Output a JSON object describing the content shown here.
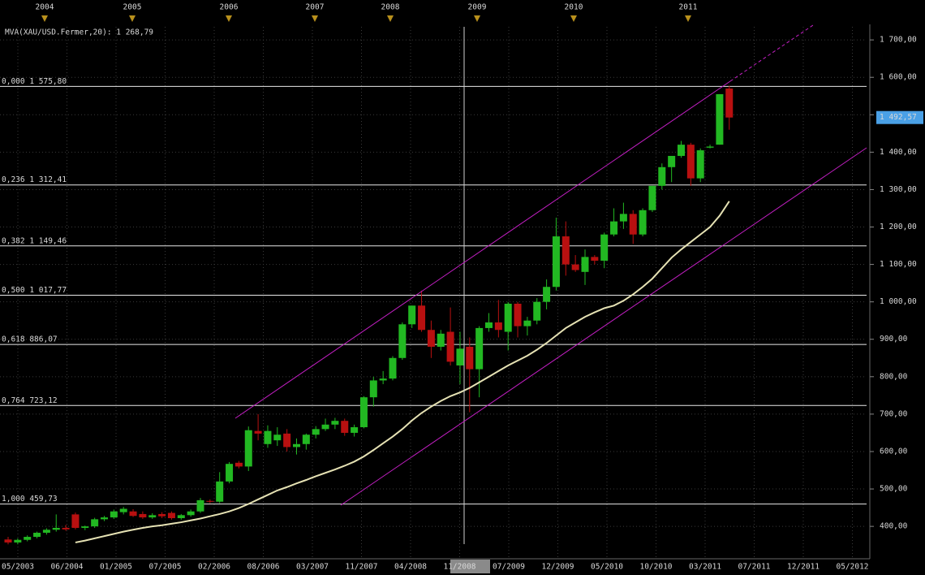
{
  "chart_data": {
    "type": "candlestick",
    "indicator_label": "MVA(XAU/USD.Fermer,20): 1 268,79",
    "top_labels": [
      "2004",
      "2005",
      "2006",
      "2007",
      "2008",
      "2009",
      "2010",
      "2011"
    ],
    "x_labels": [
      "05/2003",
      "06/2004",
      "01/2005",
      "07/2005",
      "02/2006",
      "08/2006",
      "03/2007",
      "11/2007",
      "04/2008",
      "11/2008",
      "07/2009",
      "12/2009",
      "05/2010",
      "10/2010",
      "03/2011",
      "07/2011",
      "12/2011",
      "05/2012"
    ],
    "ylim": [
      320,
      1735
    ],
    "yticks": [
      {
        "value": 400,
        "label": "400,00"
      },
      {
        "value": 500,
        "label": "500,00"
      },
      {
        "value": 600,
        "label": "600,00"
      },
      {
        "value": 700,
        "label": "700,00"
      },
      {
        "value": 800,
        "label": "800,00"
      },
      {
        "value": 900,
        "label": "900,00"
      },
      {
        "value": 1000,
        "label": "1 000,00"
      },
      {
        "value": 1100,
        "label": "1 100,00"
      },
      {
        "value": 1200,
        "label": "1 200,00"
      },
      {
        "value": 1300,
        "label": "1 300,00"
      },
      {
        "value": 1400,
        "label": "1 400,00"
      },
      {
        "value": 1500,
        "label": "1 500,00"
      },
      {
        "value": 1600,
        "label": "1 600,00"
      },
      {
        "value": 1700,
        "label": "1 700,00"
      }
    ],
    "fib_levels": [
      {
        "value": 1575.8,
        "label": "0,000 1 575,80"
      },
      {
        "value": 1312.41,
        "label": "0,236 1 312,41"
      },
      {
        "value": 1149.46,
        "label": "0,382 1 149,46"
      },
      {
        "value": 1017.77,
        "label": "0,500 1 017,77"
      },
      {
        "value": 886.07,
        "label": "0,618 886,07"
      },
      {
        "value": 723.12,
        "label": "0,764 723,12"
      },
      {
        "value": 459.73,
        "label": "1,000 459,73"
      }
    ],
    "last_price": {
      "value": 1492.57,
      "label": "1 492,57"
    },
    "up_color": "#22b822",
    "down_color": "#b81010",
    "ma_color": "#e6e2b4",
    "fib_color": "#e8e8e8",
    "grid": true,
    "open": [
      365,
      357,
      364,
      372,
      383,
      391,
      396,
      432,
      396,
      400,
      419,
      424,
      438,
      440,
      433,
      424,
      433,
      436,
      422,
      430,
      440,
      468,
      466,
      520,
      570,
      560,
      655,
      620,
      630,
      648,
      612,
      620,
      645,
      660,
      672,
      682,
      650,
      665,
      745,
      790,
      795,
      850,
      940,
      990,
      925,
      880,
      920,
      830,
      880,
      820,
      930,
      945,
      920,
      995,
      935,
      950,
      1000,
      1040,
      1175,
      1100,
      1080,
      1120,
      1110,
      1180,
      1215,
      1235,
      1180,
      1245,
      1310,
      1360,
      1390,
      1420,
      1330,
      1412,
      1420,
      1570
    ],
    "high": [
      372,
      368,
      376,
      386,
      395,
      432,
      404,
      437,
      402,
      423,
      428,
      445,
      452,
      446,
      440,
      435,
      438,
      440,
      433,
      445,
      476,
      472,
      545,
      572,
      575,
      667,
      700,
      670,
      665,
      660,
      635,
      648,
      668,
      688,
      690,
      688,
      672,
      748,
      800,
      815,
      855,
      945,
      990,
      1030,
      950,
      925,
      985,
      920,
      905,
      935,
      970,
      1005,
      1000,
      1000,
      960,
      1010,
      1060,
      1225,
      1215,
      1125,
      1140,
      1125,
      1185,
      1250,
      1265,
      1245,
      1250,
      1310,
      1370,
      1390,
      1430,
      1425,
      1410,
      1420,
      1555,
      1577
    ],
    "low": [
      352,
      352,
      360,
      368,
      378,
      386,
      388,
      392,
      390,
      396,
      414,
      420,
      432,
      425,
      420,
      420,
      422,
      418,
      418,
      426,
      436,
      462,
      462,
      515,
      555,
      548,
      630,
      610,
      615,
      600,
      592,
      605,
      635,
      655,
      660,
      642,
      640,
      662,
      720,
      780,
      790,
      845,
      930,
      920,
      850,
      870,
      830,
      780,
      705,
      745,
      920,
      905,
      870,
      905,
      910,
      940,
      980,
      1030,
      1070,
      1080,
      1045,
      1100,
      1090,
      1175,
      1195,
      1155,
      1175,
      1240,
      1300,
      1320,
      1385,
      1310,
      1320,
      1410,
      1420,
      1460
    ],
    "close": [
      357,
      364,
      372,
      383,
      391,
      396,
      392,
      396,
      400,
      419,
      424,
      440,
      447,
      428,
      424,
      430,
      427,
      422,
      430,
      440,
      470,
      466,
      520,
      567,
      560,
      657,
      648,
      655,
      645,
      612,
      620,
      645,
      660,
      672,
      682,
      650,
      665,
      745,
      790,
      795,
      850,
      940,
      990,
      925,
      880,
      915,
      840,
      875,
      820,
      930,
      945,
      925,
      995,
      935,
      950,
      1000,
      1040,
      1175,
      1100,
      1085,
      1120,
      1110,
      1180,
      1215,
      1235,
      1180,
      1245,
      1310,
      1360,
      1390,
      1420,
      1330,
      1405,
      1415,
      1555,
      1492.57
    ],
    "ma_values": [
      null,
      null,
      null,
      null,
      null,
      null,
      null,
      357,
      362,
      368,
      374,
      380,
      386,
      391,
      396,
      400,
      403,
      407,
      411,
      416,
      421,
      427,
      433,
      440,
      449,
      460,
      472,
      484,
      496,
      505,
      515,
      524,
      534,
      543,
      552,
      562,
      573,
      587,
      604,
      622,
      640,
      660,
      683,
      703,
      720,
      735,
      748,
      758,
      770,
      785,
      800,
      815,
      830,
      843,
      856,
      872,
      890,
      910,
      930,
      945,
      960,
      972,
      983,
      990,
      1003,
      1020,
      1040,
      1062,
      1090,
      1118,
      1140,
      1160,
      1180,
      1200,
      1230,
      1268.79
    ]
  }
}
